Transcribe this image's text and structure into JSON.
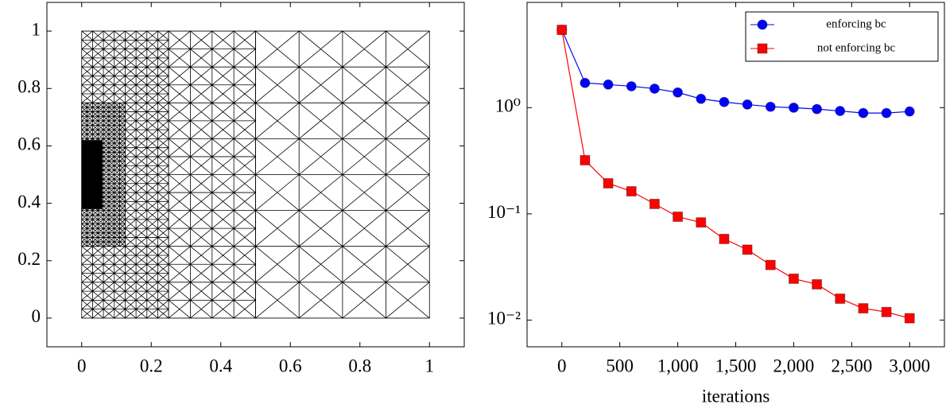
{
  "chart_data": [
    {
      "type": "mesh",
      "xlim": [
        -0.1,
        1.1
      ],
      "ylim": [
        -0.1,
        1.1
      ],
      "xticks": [
        0,
        0.2,
        0.4,
        0.6,
        0.8,
        1
      ],
      "yticks": [
        0,
        0.2,
        0.4,
        0.6,
        0.8,
        1
      ]
    },
    {
      "type": "line",
      "x_label": "iterations",
      "log_y": true,
      "legend": "north east",
      "x": [
        0,
        200,
        400,
        600,
        800,
        1000,
        1200,
        1400,
        1600,
        1800,
        2000,
        2200,
        2400,
        2600,
        2800,
        3000
      ],
      "series": [
        {
          "name": "enforcing bc",
          "color": "#0000ff",
          "marker": "circle",
          "values": [
            5.4,
            1.71,
            1.65,
            1.59,
            1.51,
            1.39,
            1.21,
            1.13,
            1.07,
            1.02,
            1.0,
            0.97,
            0.93,
            0.89,
            0.89,
            0.92
          ]
        },
        {
          "name": "not enforcing bc",
          "color": "#ff0000",
          "marker": "square",
          "values": [
            5.4,
            0.32,
            0.194,
            0.163,
            0.124,
            0.094,
            0.083,
            0.058,
            0.046,
            0.033,
            0.0245,
            0.0217,
            0.0159,
            0.0129,
            0.0119,
            0.0104
          ]
        }
      ],
      "xlim": [
        -300,
        3300
      ],
      "ylim": [
        0.0056,
        9.8
      ],
      "xticks": [
        0,
        500,
        {
          "value": 1000,
          "label": "1,000"
        },
        {
          "value": 1500,
          "label": "1,500"
        },
        {
          "value": 2000,
          "label": "2,000"
        },
        {
          "value": 2500,
          "label": "2,500"
        },
        {
          "value": 3000,
          "label": "3,000"
        }
      ],
      "yticks": [
        {
          "value": 0.01,
          "label": "10⁻²"
        },
        {
          "value": 0.1,
          "label": "10⁻¹"
        },
        {
          "value": 1,
          "label": "10⁰"
        }
      ]
    }
  ]
}
